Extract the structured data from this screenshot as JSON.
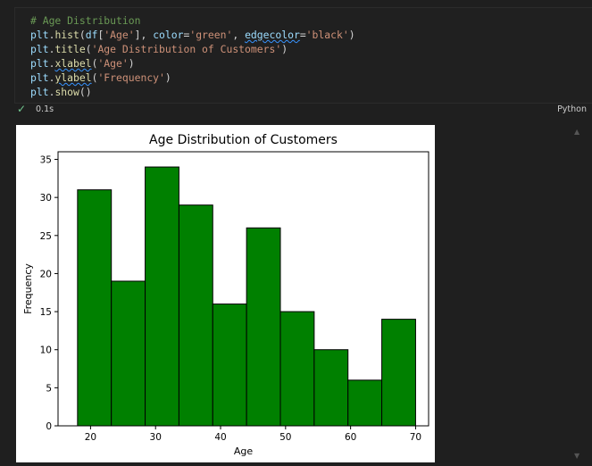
{
  "code_lines": [
    [
      {
        "t": "# Age Distribution",
        "c": "tok-comment"
      }
    ],
    [
      {
        "t": "plt",
        "c": "tok-var"
      },
      {
        "t": ".",
        "c": "tok-plain"
      },
      {
        "t": "hist",
        "c": "tok-fn"
      },
      {
        "t": "(",
        "c": "tok-plain"
      },
      {
        "t": "df",
        "c": "tok-var"
      },
      {
        "t": "[",
        "c": "tok-plain"
      },
      {
        "t": "'Age'",
        "c": "tok-str"
      },
      {
        "t": "], ",
        "c": "tok-plain"
      },
      {
        "t": "color",
        "c": "tok-kw"
      },
      {
        "t": "=",
        "c": "tok-plain"
      },
      {
        "t": "'green'",
        "c": "tok-str"
      },
      {
        "t": ", ",
        "c": "tok-plain"
      },
      {
        "t": "edgecolor",
        "c": "tok-kw squiggle"
      },
      {
        "t": "=",
        "c": "tok-plain"
      },
      {
        "t": "'black'",
        "c": "tok-str"
      },
      {
        "t": ")",
        "c": "tok-plain"
      }
    ],
    [
      {
        "t": "plt",
        "c": "tok-var"
      },
      {
        "t": ".",
        "c": "tok-plain"
      },
      {
        "t": "title",
        "c": "tok-fn"
      },
      {
        "t": "(",
        "c": "tok-plain"
      },
      {
        "t": "'Age Distribution of Customers'",
        "c": "tok-str"
      },
      {
        "t": ")",
        "c": "tok-plain"
      }
    ],
    [
      {
        "t": "plt",
        "c": "tok-var"
      },
      {
        "t": ".",
        "c": "tok-plain"
      },
      {
        "t": "xlabel",
        "c": "tok-fn squiggle"
      },
      {
        "t": "(",
        "c": "tok-plain"
      },
      {
        "t": "'Age'",
        "c": "tok-str"
      },
      {
        "t": ")",
        "c": "tok-plain"
      }
    ],
    [
      {
        "t": "plt",
        "c": "tok-var"
      },
      {
        "t": ".",
        "c": "tok-plain"
      },
      {
        "t": "ylabel",
        "c": "tok-fn squiggle"
      },
      {
        "t": "(",
        "c": "tok-plain"
      },
      {
        "t": "'Frequency'",
        "c": "tok-str"
      },
      {
        "t": ")",
        "c": "tok-plain"
      }
    ],
    [
      {
        "t": "plt",
        "c": "tok-var"
      },
      {
        "t": ".",
        "c": "tok-plain"
      },
      {
        "t": "show",
        "c": "tok-fn"
      },
      {
        "t": "()",
        "c": "tok-plain"
      }
    ]
  ],
  "status": {
    "check_icon": "check-icon",
    "time": "0.1s",
    "language": "Python"
  },
  "chart_data": {
    "type": "bar",
    "title": "Age Distribution of Customers",
    "xlabel": "Age",
    "ylabel": "Frequency",
    "xlim": [
      15,
      72
    ],
    "ylim": [
      0,
      36
    ],
    "xticks": [
      20,
      30,
      40,
      50,
      60,
      70
    ],
    "yticks": [
      0,
      5,
      10,
      15,
      20,
      25,
      30,
      35
    ],
    "bin_edges": [
      18,
      23.2,
      28.4,
      33.6,
      38.8,
      44,
      49.2,
      54.4,
      59.6,
      64.8,
      70
    ],
    "values": [
      31,
      19,
      34,
      29,
      16,
      26,
      15,
      10,
      6,
      14
    ],
    "bar_color": "#008000",
    "edge_color": "#000000",
    "grid": false
  }
}
